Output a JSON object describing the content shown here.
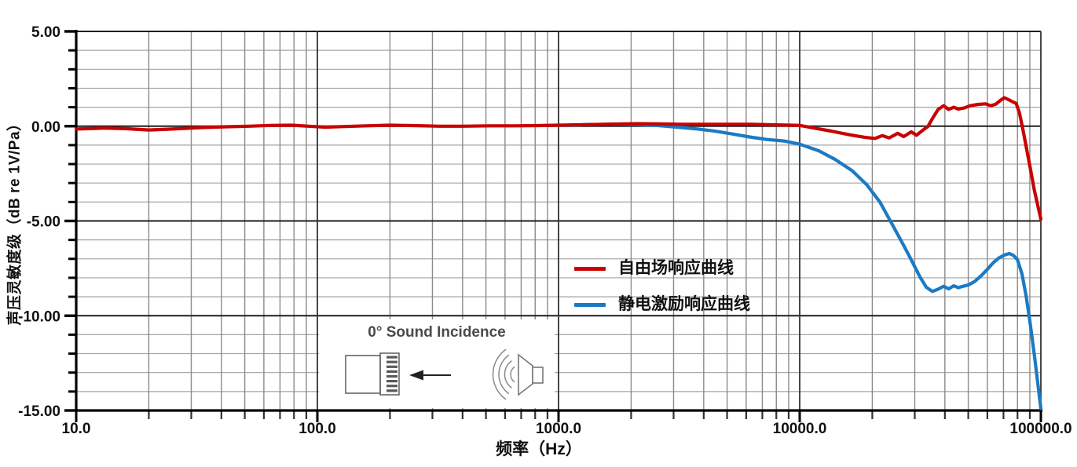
{
  "chart_data": {
    "type": "line",
    "title": "",
    "xlabel": "频率（Hz）",
    "ylabel": "声压灵敏度级（dB re 1V/Pa）",
    "x_scale": "log",
    "xlim": [
      10,
      100000
    ],
    "ylim": [
      -15,
      5
    ],
    "y_major_step": 5,
    "y_minor_step": 1,
    "grid": "both",
    "legend_position": "inside-center-right",
    "x_tick_values": [
      10,
      100,
      1000,
      10000,
      100000
    ],
    "x_tick_labels": [
      "10.0",
      "100.0",
      "1000.0",
      "10000.0",
      "100000.0"
    ],
    "y_tick_values": [
      5,
      0,
      -5,
      -10,
      -15
    ],
    "y_tick_labels": [
      "5.00",
      "0.00",
      "-5.00",
      "-10.00",
      "-15.00"
    ],
    "series": [
      {
        "name": "自由场响应曲线",
        "color": "#c80101",
        "points": [
          [
            10,
            -0.15
          ],
          [
            13,
            -0.1
          ],
          [
            16,
            -0.13
          ],
          [
            20,
            -0.2
          ],
          [
            24,
            -0.16
          ],
          [
            28,
            -0.12
          ],
          [
            34,
            -0.07
          ],
          [
            42,
            -0.03
          ],
          [
            52,
            0
          ],
          [
            64,
            0.04
          ],
          [
            78,
            0.05
          ],
          [
            92,
            0
          ],
          [
            108,
            -0.05
          ],
          [
            130,
            -0.02
          ],
          [
            160,
            0.02
          ],
          [
            200,
            0.05
          ],
          [
            250,
            0.03
          ],
          [
            320,
            0
          ],
          [
            400,
            0
          ],
          [
            520,
            0.02
          ],
          [
            660,
            0.02
          ],
          [
            820,
            0.03
          ],
          [
            1000,
            0.05
          ],
          [
            1300,
            0.08
          ],
          [
            1700,
            0.11
          ],
          [
            2100,
            0.13
          ],
          [
            2600,
            0.12
          ],
          [
            3200,
            0.1
          ],
          [
            4000,
            0.1
          ],
          [
            5000,
            0.1
          ],
          [
            6300,
            0.1
          ],
          [
            8000,
            0.07
          ],
          [
            10000,
            0.04
          ],
          [
            11500,
            -0.1
          ],
          [
            13500,
            -0.26
          ],
          [
            16000,
            -0.45
          ],
          [
            18500,
            -0.58
          ],
          [
            20500,
            -0.65
          ],
          [
            22000,
            -0.5
          ],
          [
            23500,
            -0.62
          ],
          [
            25500,
            -0.38
          ],
          [
            27000,
            -0.55
          ],
          [
            29000,
            -0.3
          ],
          [
            30500,
            -0.48
          ],
          [
            32500,
            -0.2
          ],
          [
            34000,
            -0.02
          ],
          [
            35500,
            0.4
          ],
          [
            37500,
            0.88
          ],
          [
            39500,
            1.08
          ],
          [
            41500,
            0.88
          ],
          [
            43500,
            1.0
          ],
          [
            45500,
            0.9
          ],
          [
            48000,
            0.96
          ],
          [
            51000,
            1.08
          ],
          [
            55000,
            1.15
          ],
          [
            59000,
            1.18
          ],
          [
            62000,
            1.08
          ],
          [
            65000,
            1.16
          ],
          [
            68000,
            1.36
          ],
          [
            70500,
            1.5
          ],
          [
            73000,
            1.42
          ],
          [
            76000,
            1.3
          ],
          [
            79000,
            1.2
          ],
          [
            81500,
            0.7
          ],
          [
            84000,
            -0.1
          ],
          [
            87000,
            -1.1
          ],
          [
            90000,
            -2.1
          ],
          [
            94000,
            -3.4
          ],
          [
            100000,
            -4.9
          ]
        ]
      },
      {
        "name": "静电激励响应曲线",
        "color": "#1b7ac4",
        "points": [
          [
            1050,
            0.04
          ],
          [
            1300,
            0.08
          ],
          [
            1700,
            0.1
          ],
          [
            2100,
            0.08
          ],
          [
            2600,
            0.03
          ],
          [
            3100,
            -0.05
          ],
          [
            3700,
            -0.14
          ],
          [
            4400,
            -0.25
          ],
          [
            5200,
            -0.4
          ],
          [
            6200,
            -0.57
          ],
          [
            7300,
            -0.7
          ],
          [
            8600,
            -0.78
          ],
          [
            10000,
            -0.95
          ],
          [
            12000,
            -1.3
          ],
          [
            14000,
            -1.75
          ],
          [
            16500,
            -2.35
          ],
          [
            19000,
            -3.1
          ],
          [
            21500,
            -4.0
          ],
          [
            24000,
            -5.1
          ],
          [
            26500,
            -6.1
          ],
          [
            29000,
            -7.05
          ],
          [
            31500,
            -7.95
          ],
          [
            33500,
            -8.5
          ],
          [
            35500,
            -8.72
          ],
          [
            37500,
            -8.6
          ],
          [
            39500,
            -8.45
          ],
          [
            41500,
            -8.58
          ],
          [
            43500,
            -8.42
          ],
          [
            45500,
            -8.52
          ],
          [
            47500,
            -8.45
          ],
          [
            50000,
            -8.38
          ],
          [
            53000,
            -8.2
          ],
          [
            56500,
            -7.9
          ],
          [
            60000,
            -7.55
          ],
          [
            63500,
            -7.2
          ],
          [
            67000,
            -6.95
          ],
          [
            70500,
            -6.8
          ],
          [
            74000,
            -6.72
          ],
          [
            77000,
            -6.82
          ],
          [
            80000,
            -7.05
          ],
          [
            83500,
            -7.8
          ],
          [
            87000,
            -9.0
          ],
          [
            90500,
            -10.5
          ],
          [
            94000,
            -12.1
          ],
          [
            97000,
            -13.5
          ],
          [
            100000,
            -14.9
          ]
        ]
      }
    ]
  },
  "inset": {
    "title": "0° Sound Incidence",
    "title_color": "#4a4a4a",
    "icon_names": [
      "microphone-icon",
      "arrow-left-icon",
      "sound-waves-icon",
      "speaker-icon"
    ]
  },
  "colors": {
    "background": "#ffffff",
    "axis": "#000000",
    "grid_major": "#1f1f1f",
    "grid_major_vertical": "#3c3c3c",
    "grid_minor_horizontal": "#a3a3a3",
    "grid_minor_vertical": "#8a8a8a",
    "tick_label": "#111111"
  }
}
